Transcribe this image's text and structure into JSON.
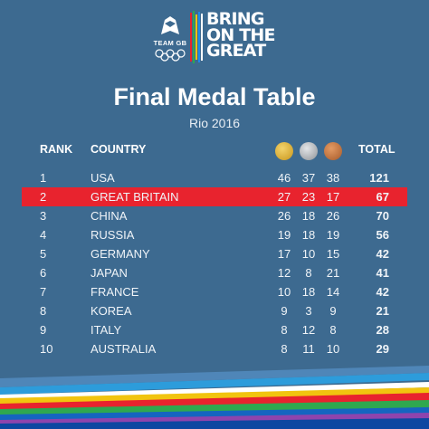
{
  "header": {
    "team_label": "TEAM GB",
    "slogan": [
      "BRING",
      "ON THE",
      "GREAT"
    ]
  },
  "title": "Final Medal Table",
  "subtitle": "Rio 2016",
  "columns": {
    "rank": "RANK",
    "country": "COUNTRY",
    "gold": "gold-medal-icon",
    "silver": "silver-medal-icon",
    "bronze": "bronze-medal-icon",
    "total": "TOTAL"
  },
  "rows": [
    {
      "rank": "1",
      "country": "USA",
      "gold": "46",
      "silver": "37",
      "bronze": "38",
      "total": "121"
    },
    {
      "rank": "2",
      "country": "GREAT BRITAIN",
      "gold": "27",
      "silver": "23",
      "bronze": "17",
      "total": "67"
    },
    {
      "rank": "3",
      "country": "CHINA",
      "gold": "26",
      "silver": "18",
      "bronze": "26",
      "total": "70"
    },
    {
      "rank": "4",
      "country": "RUSSIA",
      "gold": "19",
      "silver": "18",
      "bronze": "19",
      "total": "56"
    },
    {
      "rank": "5",
      "country": "GERMANY",
      "gold": "17",
      "silver": "10",
      "bronze": "15",
      "total": "42"
    },
    {
      "rank": "6",
      "country": "JAPAN",
      "gold": "12",
      "silver": "8",
      "bronze": "21",
      "total": "41"
    },
    {
      "rank": "7",
      "country": "FRANCE",
      "gold": "10",
      "silver": "18",
      "bronze": "14",
      "total": "42"
    },
    {
      "rank": "8",
      "country": "KOREA",
      "gold": "9",
      "silver": "3",
      "bronze": "9",
      "total": "21"
    },
    {
      "rank": "9",
      "country": "ITALY",
      "gold": "8",
      "silver": "12",
      "bronze": "8",
      "total": "28"
    },
    {
      "rank": "10",
      "country": "AUSTRALIA",
      "gold": "8",
      "silver": "11",
      "bronze": "10",
      "total": "29"
    }
  ],
  "colors": {
    "background": "#3d6a90",
    "highlight": "#e8232e",
    "gold": "#d6a72a",
    "silver": "#a9adb1",
    "bronze": "#c0703a"
  }
}
